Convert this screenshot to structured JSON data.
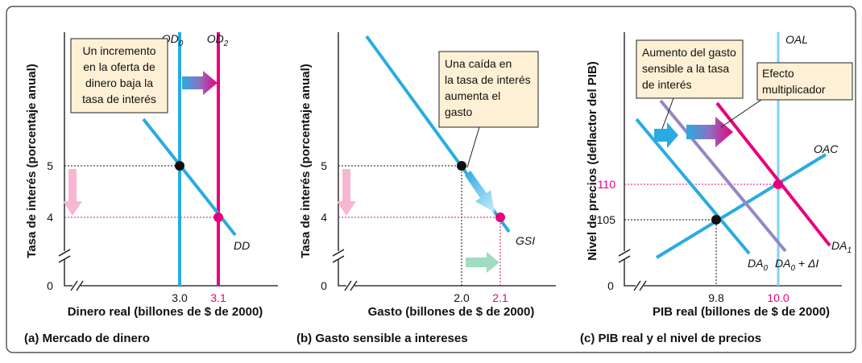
{
  "panels": [
    {
      "y_axis_title": "Tasa de interés (porcentaje anual)",
      "x_axis_title": "Dinero real (billones de $ de 2000)",
      "caption": "(a) Mercado de dinero",
      "origin": "0",
      "y_ticks": [
        "5",
        "4"
      ],
      "x_ticks": [
        "3.0",
        "3.1"
      ],
      "curve_labels": [
        {
          "text": "OD",
          "sub": "0"
        },
        {
          "text": "OD",
          "sub": "2"
        },
        {
          "text": "DD"
        }
      ],
      "callouts": [
        [
          "Un incremento",
          "en la oferta de",
          "dinero baja la",
          "tasa de interés"
        ]
      ]
    },
    {
      "y_axis_title": "Tasa de interés (porcentaje anual)",
      "x_axis_title": "Gasto (billones de $ de 2000)",
      "caption": "(b) Gasto sensible a intereses",
      "origin": "0",
      "y_ticks": [
        "5",
        "4"
      ],
      "x_ticks": [
        "2.0",
        "2.1"
      ],
      "curve_labels": [
        {
          "text": "GSI"
        }
      ],
      "callouts": [
        [
          "Una caída en",
          "la tasa de interés",
          "aumenta el",
          "gasto"
        ]
      ]
    },
    {
      "y_axis_title": "Nivel de precios (deflactor del PIB)",
      "x_axis_title": "PIB real (billones de $ de 2000)",
      "caption": "(c) PIB real y el nivel de precios",
      "origin": "0",
      "y_ticks": [
        "110",
        "105"
      ],
      "x_ticks": [
        "9.8",
        "10.0"
      ],
      "curve_labels": [
        {
          "text": "OAL"
        },
        {
          "text": "OAC"
        },
        {
          "text": "DA",
          "sub": "1"
        },
        {
          "text": "DA",
          "sub": "0"
        },
        {
          "text": "DA",
          "sub": "0",
          "suffix": " + ΔI"
        }
      ],
      "callouts": [
        [
          "Aumento del gasto",
          "sensible a la tasa",
          "de interés"
        ],
        [
          "Efecto",
          "multiplicador"
        ]
      ]
    }
  ]
}
